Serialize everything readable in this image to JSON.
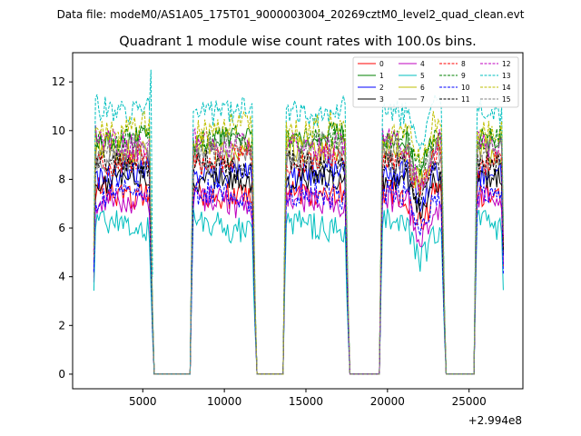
{
  "chart_data": {
    "type": "line",
    "suptitle": "Data file: modeM0/AS1A05_175T01_9000003004_20269cztM0_level2_quad_clean.evt",
    "title": "Quadrant 1 module wise count rates with 100.0s bins.",
    "xlabel": "",
    "ylabel": "",
    "offset_text": "+2.994e8",
    "xlim": [
      700,
      28300
    ],
    "ylim": [
      -0.6,
      13.2
    ],
    "xticks": [
      5000,
      10000,
      15000,
      20000,
      25000
    ],
    "xtick_labels": [
      "5000",
      "10000",
      "15000",
      "20000",
      "25000"
    ],
    "yticks": [
      0,
      2,
      4,
      6,
      8,
      10,
      12
    ],
    "ytick_labels": [
      "0",
      "2",
      "4",
      "6",
      "8",
      "10",
      "12"
    ],
    "segments": [
      [
        2000,
        5500
      ],
      [
        7950,
        11800
      ],
      [
        13650,
        17550
      ],
      [
        19600,
        23400
      ],
      [
        25350,
        27100
      ]
    ],
    "gap_level": 0,
    "legend_position": "upper right",
    "series": [
      {
        "name": "0",
        "color": "#ff0000",
        "dash": "solid",
        "level": 7.5,
        "amp": 0.35,
        "seed": 1
      },
      {
        "name": "1",
        "color": "#008000",
        "dash": "solid",
        "level": 9.8,
        "amp": 0.3,
        "seed": 2
      },
      {
        "name": "2",
        "color": "#0000ff",
        "dash": "solid",
        "level": 8.2,
        "amp": 0.35,
        "seed": 3
      },
      {
        "name": "3",
        "color": "#000000",
        "dash": "solid",
        "level": 7.9,
        "amp": 0.3,
        "seed": 4
      },
      {
        "name": "4",
        "color": "#bf00bf",
        "dash": "solid",
        "level": 7.0,
        "amp": 0.35,
        "seed": 5
      },
      {
        "name": "5",
        "color": "#00bfbf",
        "dash": "solid",
        "level": 6.1,
        "amp": 0.35,
        "seed": 6
      },
      {
        "name": "6",
        "color": "#bfbf00",
        "dash": "solid",
        "level": 9.3,
        "amp": 0.35,
        "seed": 7
      },
      {
        "name": "7",
        "color": "#808080",
        "dash": "solid",
        "level": 8.9,
        "amp": 0.35,
        "seed": 8
      },
      {
        "name": "8",
        "color": "#ff0000",
        "dash": "dashed",
        "level": 8.8,
        "amp": 0.35,
        "seed": 9
      },
      {
        "name": "9",
        "color": "#008000",
        "dash": "dashed",
        "level": 9.6,
        "amp": 0.3,
        "seed": 10
      },
      {
        "name": "10",
        "color": "#0000ff",
        "dash": "dashed",
        "level": 7.3,
        "amp": 0.35,
        "seed": 11
      },
      {
        "name": "11",
        "color": "#000000",
        "dash": "dashed",
        "level": 8.6,
        "amp": 0.3,
        "seed": 12
      },
      {
        "name": "12",
        "color": "#bf00bf",
        "dash": "dashed",
        "level": 9.5,
        "amp": 0.35,
        "seed": 13
      },
      {
        "name": "13",
        "color": "#00bfbf",
        "dash": "dashed",
        "level": 10.9,
        "amp": 0.35,
        "seed": 14
      },
      {
        "name": "14",
        "color": "#bfbf00",
        "dash": "dashed",
        "level": 10.1,
        "amp": 0.35,
        "seed": 15
      },
      {
        "name": "15",
        "color": "#808080",
        "dash": "dashed",
        "level": 9.2,
        "amp": 0.35,
        "seed": 16
      }
    ]
  }
}
